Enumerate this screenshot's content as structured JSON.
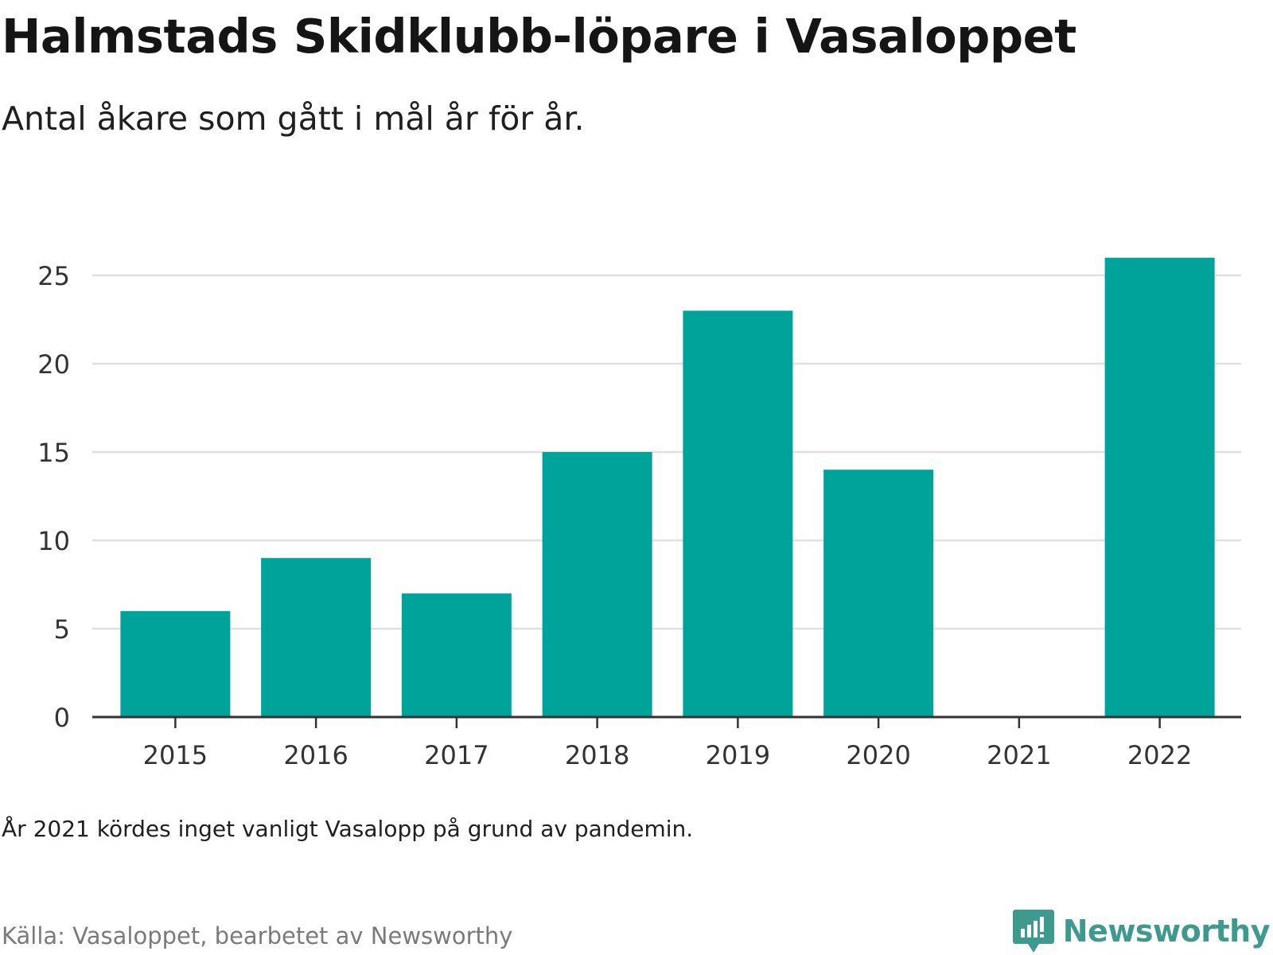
{
  "header": {
    "title": "Halmstads Skidklubb-löpare i Vasaloppet",
    "subtitle": "Antal åkare som gått i mål år för år."
  },
  "footer": {
    "note": "År 2021 kördes inget vanligt Vasalopp på grund av pandemin.",
    "source": "Källa: Vasaloppet, bearbetet av Newsworthy",
    "brand_name": "Newsworthy",
    "brand_icon": "bar-chart-speech-bubble-icon"
  },
  "colors": {
    "bar": "#00a39a",
    "grid": "#e0e0e0",
    "axis": "#333333",
    "brand": "#3f9a8e"
  },
  "chart_data": {
    "type": "bar",
    "title": "Halmstads Skidklubb-löpare i Vasaloppet",
    "subtitle": "Antal åkare som gått i mål år för år.",
    "xlabel": "",
    "ylabel": "",
    "categories": [
      "2015",
      "2016",
      "2017",
      "2018",
      "2019",
      "2020",
      "2021",
      "2022"
    ],
    "values": [
      6,
      9,
      7,
      15,
      23,
      14,
      0,
      26
    ],
    "ylim": [
      0,
      27
    ],
    "yticks": [
      0,
      5,
      10,
      15,
      20,
      25
    ],
    "grid": true,
    "legend": "none"
  }
}
